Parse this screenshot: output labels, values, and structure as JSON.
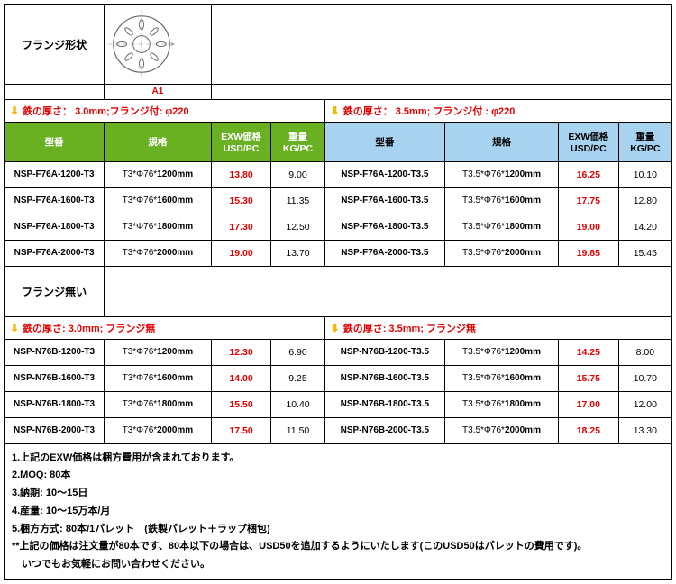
{
  "top": {
    "flange_shape_label": "フランジ形状",
    "a1_label": "A1"
  },
  "section1": {
    "left_header": "鉄の厚さ：  3.0mm;フランジ付: φ220",
    "right_header": "鉄の厚さ：  3.5mm; フランジ付 : φ220",
    "cols_left": {
      "model": "型番",
      "spec": "規格",
      "price": "EXW価格 USD/PC",
      "weight": "重量 KG/PC"
    },
    "cols_right": {
      "model": "型番",
      "spec": "規格",
      "price": "EXW価格 USD/PC",
      "weight": "重量 KG/PC"
    },
    "rows": [
      {
        "lm": "NSP-F76A-1200-T3",
        "ls": "T3*Φ76*",
        "lsb": "1200mm",
        "lp": "13.80",
        "lw": "9.00",
        "rm": "NSP-F76A-1200-T3.5",
        "rs": "T3.5*Φ76*",
        "rsb": "1200mm",
        "rp": "16.25",
        "rw": "10.10"
      },
      {
        "lm": "NSP-F76A-1600-T3",
        "ls": "T3*Φ76*",
        "lsb": "1600mm",
        "lp": "15.30",
        "lw": "11.35",
        "rm": "NSP-F76A-1600-T3.5",
        "rs": "T3.5*Φ76*",
        "rsb": "1600mm",
        "rp": "17.75",
        "rw": "12.80"
      },
      {
        "lm": "NSP-F76A-1800-T3",
        "ls": "T3*Φ76*",
        "lsb": "1800mm",
        "lp": "17.30",
        "lw": "12.50",
        "rm": "NSP-F76A-1800-T3.5",
        "rs": "T3.5*Φ76*",
        "rsb": "1800mm",
        "rp": "19.00",
        "rw": "14.20"
      },
      {
        "lm": "NSP-F76A-2000-T3",
        "ls": "T3*Φ76*",
        "lsb": "2000mm",
        "lp": "19.00",
        "lw": "13.70",
        "rm": "NSP-F76A-2000-T3.5",
        "rs": "T3.5*Φ76*",
        "rsb": "2000mm",
        "rp": "19.85",
        "rw": "15.45"
      }
    ]
  },
  "mid_label": "フランジ無い",
  "section2": {
    "left_header": "鉄の厚さ: 3.0mm; フランジ無",
    "right_header": "鉄の厚さ: 3.5mm; フランジ無",
    "rows": [
      {
        "lm": "NSP-N76B-1200-T3",
        "ls": "T3*Φ76*",
        "lsb": "1200mm",
        "lp": "12.30",
        "lw": "6.90",
        "rm": "NSP-N76B-1200-T3.5",
        "rs": "T3.5*Φ76*",
        "rsb": "1200mm",
        "rp": "14.25",
        "rw": "8.00"
      },
      {
        "lm": "NSP-N76B-1600-T3",
        "ls": "T3*Φ76*",
        "lsb": "1600mm",
        "lp": "14.00",
        "lw": "9.25",
        "rm": "NSP-N76B-1600-T3.5",
        "rs": "T3.5*Φ76*",
        "rsb": "1600mm",
        "rp": "15.75",
        "rw": "10.70"
      },
      {
        "lm": "NSP-N76B-1800-T3",
        "ls": "T3*Φ76*",
        "lsb": "1800mm",
        "lp": "15.50",
        "lw": "10.40",
        "rm": "NSP-N76B-1800-T3.5",
        "rs": "T3.5*Φ76*",
        "rsb": "1800mm",
        "rp": "17.00",
        "rw": "12.00"
      },
      {
        "lm": "NSP-N76B-2000-T3",
        "ls": "T3*Φ76*",
        "lsb": "2000mm",
        "lp": "17.50",
        "lw": "11.50",
        "rm": "NSP-N76B-2000-T3.5",
        "rs": "T3.5*Φ76*",
        "rsb": "2000mm",
        "rp": "18.25",
        "rw": "13.30"
      }
    ]
  },
  "notes": [
    "1.上記のEXW価格は梱方費用が含まれております。",
    "2.MOQ: 80本",
    "3.納期: 10～15日",
    "4.産量: 10～15万本/月",
    "5.梱方方式: 80本/1パレット　(鉄製パレット＋ラップ梱包)",
    "**上記の価格は注文量が80本です、80本以下の場合は、USD50を追加するようにいたします(このUSD50はパレットの費用です)。",
    "　いつでもお気軽にお問い合わせください。"
  ],
  "styling": {
    "green_header_bg": "#6ab023",
    "blue_header_bg": "#a7d3f0",
    "price_color": "#e00000",
    "arrow_color": "#f5b800",
    "border_color": "#000000",
    "col_widths_pct": [
      15,
      16,
      9,
      8,
      18,
      17,
      9,
      8
    ]
  }
}
